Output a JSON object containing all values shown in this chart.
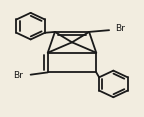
{
  "background_color": "#f2ede0",
  "line_color": "#1a1a1a",
  "line_width": 1.3,
  "figsize": [
    1.44,
    1.17
  ],
  "dpi": 100,
  "text_color": "#1a1a1a",
  "br_fontsize": 6.5
}
